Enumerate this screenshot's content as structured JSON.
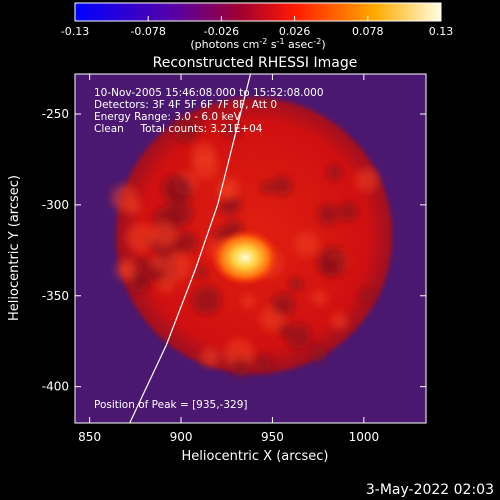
{
  "chart_data": {
    "type": "heatmap",
    "title": "Reconstructed RHESSI Image",
    "xlabel": "Heliocentric X (arcsec)",
    "ylabel": "Heliocentric Y (arcsec)",
    "xlim": [
      842,
      1034
    ],
    "ylim": [
      -420,
      -228
    ],
    "x_ticks": [
      850,
      900,
      950,
      1000
    ],
    "y_ticks": [
      -250,
      -300,
      -350,
      -400
    ],
    "colorbar": {
      "ticks": [
        "-0.13",
        "-0.078",
        "-0.026",
        "0.026",
        "0.078",
        "0.13"
      ],
      "range": [
        -0.13,
        0.13
      ],
      "label": "(photons cm",
      "label_exp1": "-2",
      "label_mid": " s",
      "label_exp2": "-1",
      "label_mid2": " asec",
      "label_exp3": "-2",
      "label_end": ")"
    },
    "info_lines": [
      "10-Nov-2005 15:46:08.000 to 15:52:08.000",
      "Detectors: 3F 4F 5F 6F 7F 8F, Att 0",
      "Energy Range: 3.0 - 6.0 keV",
      "Clean     Total counts: 3.21E+04"
    ],
    "peak_label": "Position of Peak = [935,-329]",
    "peak": [
      935,
      -329
    ],
    "disk_center": [
      940,
      -317
    ],
    "disk_radius_arcsec": 78,
    "limb_points": [
      [
        871,
        -422
      ],
      [
        892,
        -377
      ],
      [
        908,
        -335
      ],
      [
        920,
        -300
      ],
      [
        930,
        -260
      ],
      [
        938,
        -228
      ]
    ],
    "colormap": [
      "#0000ff",
      "#6600cc",
      "#cc0044",
      "#ff3300",
      "#ffaa00",
      "#ffffaa"
    ]
  },
  "timestamp": "3-May-2022 02:03"
}
